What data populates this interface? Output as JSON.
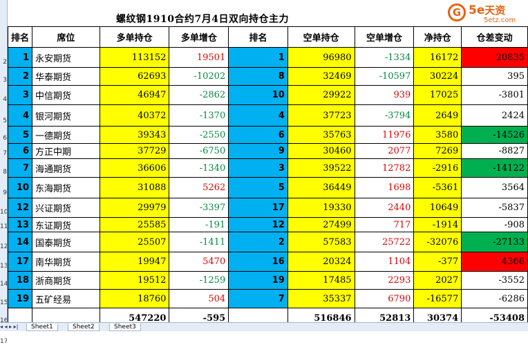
{
  "title": "螺纹钢1910合约7月4日双向持仓主力",
  "logo": {
    "mark": "G",
    "text": "5e",
    "cn": "天资",
    "url": "5etz.com"
  },
  "colors": {
    "rank_bg": "#00b0f0",
    "yellow": "#ffff00",
    "red": "#ff0000",
    "green": "#00b050"
  },
  "headers": [
    "排名",
    "席位",
    "多单持仓",
    "多单增仓",
    "排名",
    "空单持仓",
    "空单增仓",
    "净持仓",
    "仓差变动"
  ],
  "row_numbers": [
    "2",
    "3",
    "4",
    "5",
    "6",
    "7",
    "8",
    "9",
    "10",
    "11",
    "12",
    "13",
    "14",
    "15",
    "16",
    "17"
  ],
  "rows": [
    {
      "long_rank": "1",
      "name": "永安期货",
      "long_pos": "113152",
      "long_chg": "19501",
      "short_rank": "1",
      "short_pos": "96980",
      "short_chg": "-1334",
      "net": "16172",
      "diff": "20835"
    },
    {
      "long_rank": "2",
      "name": "华泰期货",
      "long_pos": "62693",
      "long_chg": "-10202",
      "short_rank": "8",
      "short_pos": "32469",
      "short_chg": "-10597",
      "net": "30224",
      "diff": "395"
    },
    {
      "long_rank": "3",
      "name": "中信期货",
      "long_pos": "46947",
      "long_chg": "-2862",
      "short_rank": "10",
      "short_pos": "29922",
      "short_chg": "939",
      "net": "17025",
      "diff": "-3801"
    },
    {
      "long_rank": "4",
      "name": "银河期货",
      "long_pos": "40372",
      "long_chg": "-1370",
      "short_rank": "4",
      "short_pos": "37723",
      "short_chg": "-3794",
      "net": "2649",
      "diff": "2424"
    },
    {
      "long_rank": "5",
      "name": "一德期货",
      "long_pos": "39343",
      "long_chg": "-2550",
      "short_rank": "6",
      "short_pos": "35763",
      "short_chg": "11976",
      "net": "3580",
      "diff": "-14526"
    },
    {
      "long_rank": "6",
      "name": "方正中期",
      "long_pos": "37729",
      "long_chg": "-6750",
      "short_rank": "9",
      "short_pos": "30460",
      "short_chg": "2077",
      "net": "7269",
      "diff": "-8827"
    },
    {
      "long_rank": "7",
      "name": "海通期货",
      "long_pos": "36606",
      "long_chg": "-1340",
      "short_rank": "3",
      "short_pos": "39522",
      "short_chg": "12782",
      "net": "-2916",
      "diff": "-14122"
    },
    {
      "long_rank": "10",
      "name": "东海期货",
      "long_pos": "31088",
      "long_chg": "5262",
      "short_rank": "5",
      "short_pos": "36449",
      "short_chg": "1698",
      "net": "-5361",
      "diff": "3564"
    },
    {
      "long_rank": "12",
      "name": "兴证期货",
      "long_pos": "29979",
      "long_chg": "-3397",
      "short_rank": "17",
      "short_pos": "19330",
      "short_chg": "2440",
      "net": "10649",
      "diff": "-5837"
    },
    {
      "long_rank": "13",
      "name": "东证期货",
      "long_pos": "25585",
      "long_chg": "-191",
      "short_rank": "12",
      "short_pos": "27499",
      "short_chg": "717",
      "net": "-1914",
      "diff": "-908"
    },
    {
      "long_rank": "14",
      "name": "国泰期货",
      "long_pos": "25507",
      "long_chg": "-1411",
      "short_rank": "2",
      "short_pos": "57583",
      "short_chg": "25722",
      "net": "-32076",
      "diff": "-27133"
    },
    {
      "long_rank": "17",
      "name": "南华期货",
      "long_pos": "19947",
      "long_chg": "5470",
      "short_rank": "16",
      "short_pos": "20324",
      "short_chg": "1104",
      "net": "-377",
      "diff": "4366"
    },
    {
      "long_rank": "18",
      "name": "浙商期货",
      "long_pos": "19512",
      "long_chg": "-1259",
      "short_rank": "19",
      "short_pos": "17485",
      "short_chg": "2293",
      "net": "2027",
      "diff": "-3552"
    },
    {
      "long_rank": "19",
      "name": "五矿经易",
      "long_pos": "18760",
      "long_chg": "504",
      "short_rank": "7",
      "short_pos": "35337",
      "short_chg": "6790",
      "net": "-16577",
      "diff": "-6286"
    }
  ],
  "total": {
    "long_pos": "547220",
    "long_chg": "-595",
    "short_pos": "516846",
    "short_chg": "52813",
    "net": "30374",
    "diff": "-53408"
  },
  "diff_highlight": {
    "20835": "red",
    "4366": "red",
    "-14526": "green",
    "-14122": "green",
    "-27133": "green"
  },
  "sheet_tabs": [
    "Sheet1",
    "Sheet2",
    "Sheet3"
  ],
  "tab_nav": "◂ ◂ ▸ ▸|"
}
